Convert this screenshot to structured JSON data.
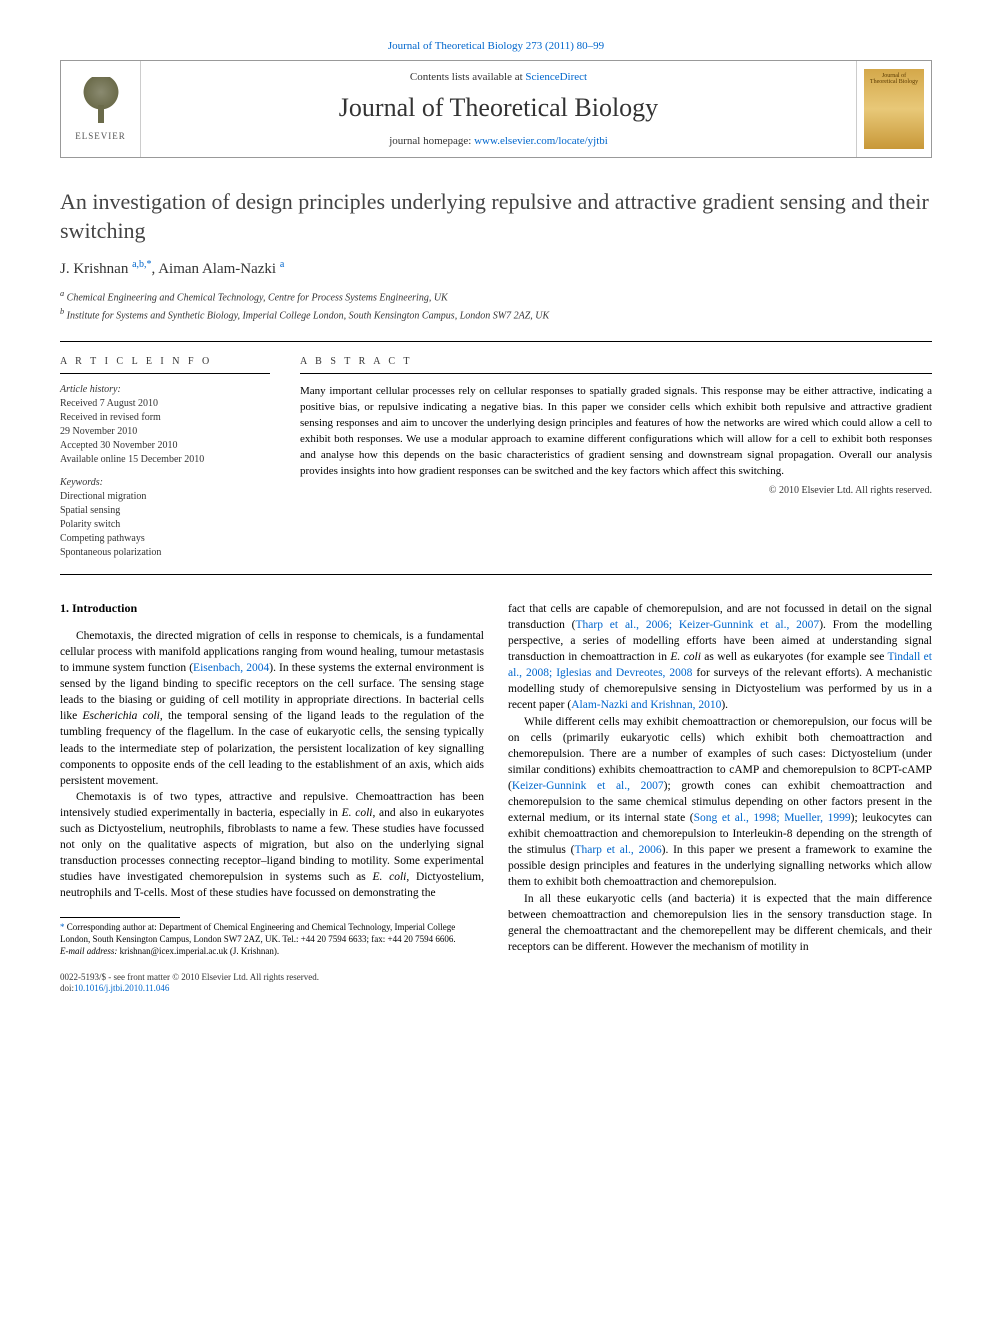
{
  "header": {
    "citation": "Journal of Theoretical Biology 273 (2011) 80–99",
    "contents_prefix": "Contents lists available at ",
    "contents_link": "ScienceDirect",
    "journal_name": "Journal of Theoretical Biology",
    "homepage_prefix": "journal homepage: ",
    "homepage_link": "www.elsevier.com/locate/yjtbi",
    "elsevier_label": "ELSEVIER",
    "cover_label": "Journal of Theoretical Biology"
  },
  "article": {
    "title": "An investigation of design principles underlying repulsive and attractive gradient sensing and their switching",
    "authors": "J. Krishnan ",
    "author_sup1": "a,b,",
    "author_sup_star": "*",
    "authors2": ", Aiman Alam-Nazki ",
    "author_sup2": "a",
    "affiliations": {
      "a": "Chemical Engineering and Chemical Technology, Centre for Process Systems Engineering, UK",
      "b": "Institute for Systems and Synthetic Biology, Imperial College London, South Kensington Campus, London SW7 2AZ, UK"
    }
  },
  "info": {
    "heading": "A R T I C L E   I N F O",
    "history_label": "Article history:",
    "received": "Received 7 August 2010",
    "revised1": "Received in revised form",
    "revised2": "29 November 2010",
    "accepted": "Accepted 30 November 2010",
    "online": "Available online 15 December 2010",
    "keywords_label": "Keywords:",
    "keywords": [
      "Directional migration",
      "Spatial sensing",
      "Polarity switch",
      "Competing pathways",
      "Spontaneous polarization"
    ]
  },
  "abstract": {
    "heading": "A B S T R A C T",
    "text": "Many important cellular processes rely on cellular responses to spatially graded signals. This response may be either attractive, indicating a positive bias, or repulsive indicating a negative bias. In this paper we consider cells which exhibit both repulsive and attractive gradient sensing responses and aim to uncover the underlying design principles and features of how the networks are wired which could allow a cell to exhibit both responses. We use a modular approach to examine different configurations which will allow for a cell to exhibit both responses and analyse how this depends on the basic characteristics of gradient sensing and downstream signal propagation. Overall our analysis provides insights into how gradient responses can be switched and the key factors which affect this switching.",
    "copyright": "© 2010 Elsevier Ltd. All rights reserved."
  },
  "body": {
    "section1_heading": "1.  Introduction",
    "col1_para1_a": "Chemotaxis, the directed migration of cells in response to chemicals, is a fundamental cellular process with manifold applications ranging from wound healing, tumour metastasis to immune system function (",
    "col1_para1_link1": "Eisenbach, 2004",
    "col1_para1_b": "). In these systems the external environment is sensed by the ligand binding to specific receptors on the cell surface. The sensing stage leads to the biasing or guiding of cell motility in appropriate directions. In bacterial cells like ",
    "col1_para1_ital1": "Escherichia coli",
    "col1_para1_c": ", the temporal sensing of the ligand leads to the regulation of the tumbling frequency of the flagellum. In the case of eukaryotic cells, the sensing typically leads to the intermediate step of polarization, the persistent localization of key signalling components to opposite ends of the cell leading to the establishment of an axis, which aids persistent movement.",
    "col1_para2_a": "Chemotaxis is of two types, attractive and repulsive. Chemoattraction has been intensively studied experimentally in bacteria, especially in ",
    "col1_para2_ital1": "E. coli",
    "col1_para2_b": ", and also in eukaryotes such as Dictyostelium, neutrophils, fibroblasts to name a few. These studies have focussed not only on the qualitative aspects of migration, but also on the underlying signal transduction processes connecting receptor–ligand binding to motility. Some experimental studies have investigated chemorepulsion in systems such as ",
    "col1_para2_ital2": "E. coli",
    "col1_para2_c": ", Dictyostelium, neutrophils and T-cells. Most of these studies have focussed on demonstrating the",
    "col2_para1_a": "fact that cells are capable of chemorepulsion, and are not focussed in detail on the signal transduction (",
    "col2_para1_link1": "Tharp et al., 2006; Keizer-Gunnink et al., 2007",
    "col2_para1_b": "). From the modelling perspective, a series of modelling efforts have been aimed at understanding signal transduction in chemoattraction in ",
    "col2_para1_ital1": "E. coli",
    "col2_para1_c": " as well as eukaryotes (for example see ",
    "col2_para1_link2": "Tindall et al., 2008; Iglesias and Devreotes, 2008",
    "col2_para1_d": " for surveys of the relevant efforts). A mechanistic modelling study of chemorepulsive sensing in Dictyostelium was performed by us in a recent paper (",
    "col2_para1_link3": "Alam-Nazki and Krishnan, 2010",
    "col2_para1_e": ").",
    "col2_para2_a": "While different cells may exhibit chemoattraction or chemorepulsion, our focus will be on cells (primarily eukaryotic cells) which exhibit both chemoattraction and chemorepulsion. There are a number of examples of such cases: Dictyostelium (under similar conditions) exhibits chemoattraction to cAMP and chemorepulsion to 8CPT-cAMP (",
    "col2_para2_link1": "Keizer-Gunnink et al., 2007",
    "col2_para2_b": "); growth cones can exhibit chemoattraction and chemorepulsion to the same chemical stimulus depending on other factors present in the external medium, or its internal state (",
    "col2_para2_link2": "Song et al., 1998; Mueller, 1999",
    "col2_para2_c": "); leukocytes can exhibit chemoattraction and chemorepulsion to Interleukin-8 depending on the strength of the stimulus (",
    "col2_para2_link3": "Tharp et al., 2006",
    "col2_para2_d": "). In this paper we present a framework to examine the possible design principles and features in the underlying signalling networks which allow them to exhibit both chemoattraction and chemorepulsion.",
    "col2_para3": "In all these eukaryotic cells (and bacteria) it is expected that the main difference between chemoattraction and chemorepulsion lies in the sensory transduction stage. In general the chemoattractant and the chemorepellent may be different chemicals, and their receptors can be different. However the mechanism of motility in"
  },
  "footnote": {
    "star_label": "*",
    "corresponding": "Corresponding author at: Department of Chemical Engineering and Chemical Technology, Imperial College London, South Kensington Campus, London SW7 2AZ, UK. Tel.: +44 20 7594 6633; fax: +44 20 7594 6606.",
    "email_label": "E-mail address:",
    "email": " krishnan@icex.imperial.ac.uk (J. Krishnan)."
  },
  "footer": {
    "issn": "0022-5193/$ - see front matter © 2010 Elsevier Ltd. All rights reserved.",
    "doi_label": "doi:",
    "doi": "10.1016/j.jtbi.2010.11.046"
  },
  "colors": {
    "link": "#0066cc",
    "text": "#000000",
    "heading": "#444444",
    "border": "#999999"
  }
}
